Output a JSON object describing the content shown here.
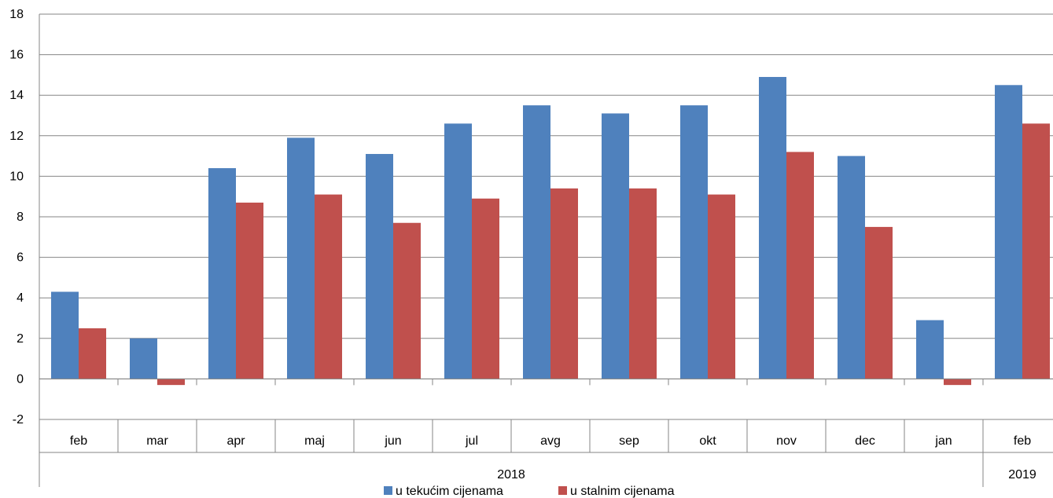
{
  "chart_data": {
    "type": "bar",
    "categories": [
      "feb",
      "mar",
      "apr",
      "maj",
      "jun",
      "jul",
      "avg",
      "sep",
      "okt",
      "nov",
      "dec",
      "jan",
      "feb"
    ],
    "groups": [
      {
        "label": "2018",
        "count": 12
      },
      {
        "label": "2019",
        "count": 1
      }
    ],
    "series": [
      {
        "name": "u tekućim cijenama",
        "color": "#4F81BD",
        "values": [
          4.3,
          2.0,
          10.4,
          11.9,
          11.1,
          12.6,
          13.5,
          13.1,
          13.5,
          14.9,
          11.0,
          2.9,
          14.5
        ]
      },
      {
        "name": "u stalnim cijenama",
        "color": "#C0504D",
        "values": [
          2.5,
          -0.3,
          8.7,
          9.1,
          7.7,
          8.9,
          9.4,
          9.4,
          9.1,
          11.2,
          7.5,
          -0.3,
          12.6
        ]
      }
    ],
    "ylim": [
      -2,
      18
    ],
    "yticks": [
      -2,
      0,
      2,
      4,
      6,
      8,
      10,
      12,
      14,
      16,
      18
    ],
    "grid": true,
    "legend_position": "bottom-center"
  }
}
